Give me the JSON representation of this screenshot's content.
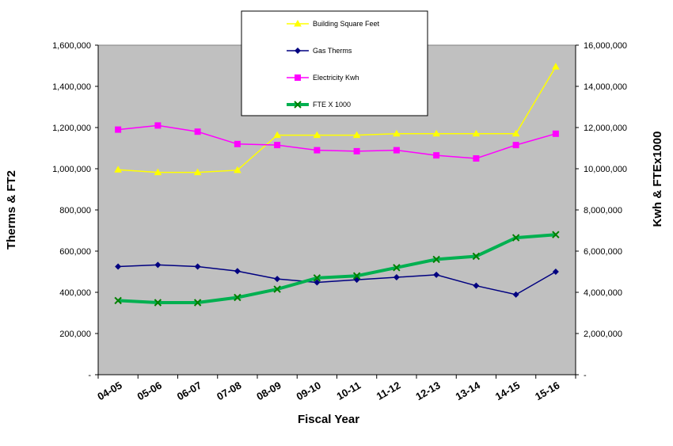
{
  "chart_data": {
    "type": "line",
    "categories": [
      "04-05",
      "05-06",
      "06-07",
      "07-08",
      "08-09",
      "09-10",
      "10-11",
      "11-12",
      "12-13",
      "13-14",
      "14-15",
      "15-16"
    ],
    "xlabel": "Fiscal Year",
    "ylabel_left": "Therms & FT2",
    "ylabel_right": "Kwh & FTEx1000",
    "ylim_left": [
      0,
      1600000
    ],
    "ylim_right": [
      0,
      16000000
    ],
    "yticks_left": [
      "-",
      "200,000",
      "400,000",
      "600,000",
      "800,000",
      "1,000,000",
      "1,200,000",
      "1,400,000",
      "1,600,000"
    ],
    "yticks_right": [
      "-",
      "2,000,000",
      "4,000,000",
      "6,000,000",
      "8,000,000",
      "10,000,000",
      "12,000,000",
      "14,000,000",
      "16,000,000"
    ],
    "grid": false,
    "plot_background": "#c0c0c0",
    "legend_position": "top-center",
    "series": [
      {
        "name": "Building Square Feet",
        "axis": "left",
        "color": "#ffff00",
        "marker": "triangle",
        "values": [
          995000,
          982000,
          982000,
          993000,
          1163000,
          1163000,
          1163000,
          1170000,
          1170000,
          1170000,
          1170000,
          1495000
        ]
      },
      {
        "name": "Gas Therms",
        "axis": "left",
        "color": "#000080",
        "marker": "diamond",
        "values": [
          525000,
          533000,
          525000,
          503000,
          465000,
          448000,
          461000,
          473000,
          485000,
          432000,
          389000,
          500000
        ]
      },
      {
        "name": "Electricity Kwh",
        "axis": "right",
        "color": "#ff00ff",
        "marker": "square",
        "values": [
          11900000,
          12100000,
          11800000,
          11200000,
          11150000,
          10900000,
          10850000,
          10900000,
          10650000,
          10500000,
          11150000,
          11700000
        ]
      },
      {
        "name": "FTE X 1000",
        "axis": "right",
        "color": "#00b050",
        "marker": "x",
        "values": [
          3600000,
          3500000,
          3500000,
          3750000,
          4150000,
          4700000,
          4800000,
          5200000,
          5600000,
          5750000,
          6650000,
          6800000
        ]
      }
    ]
  }
}
